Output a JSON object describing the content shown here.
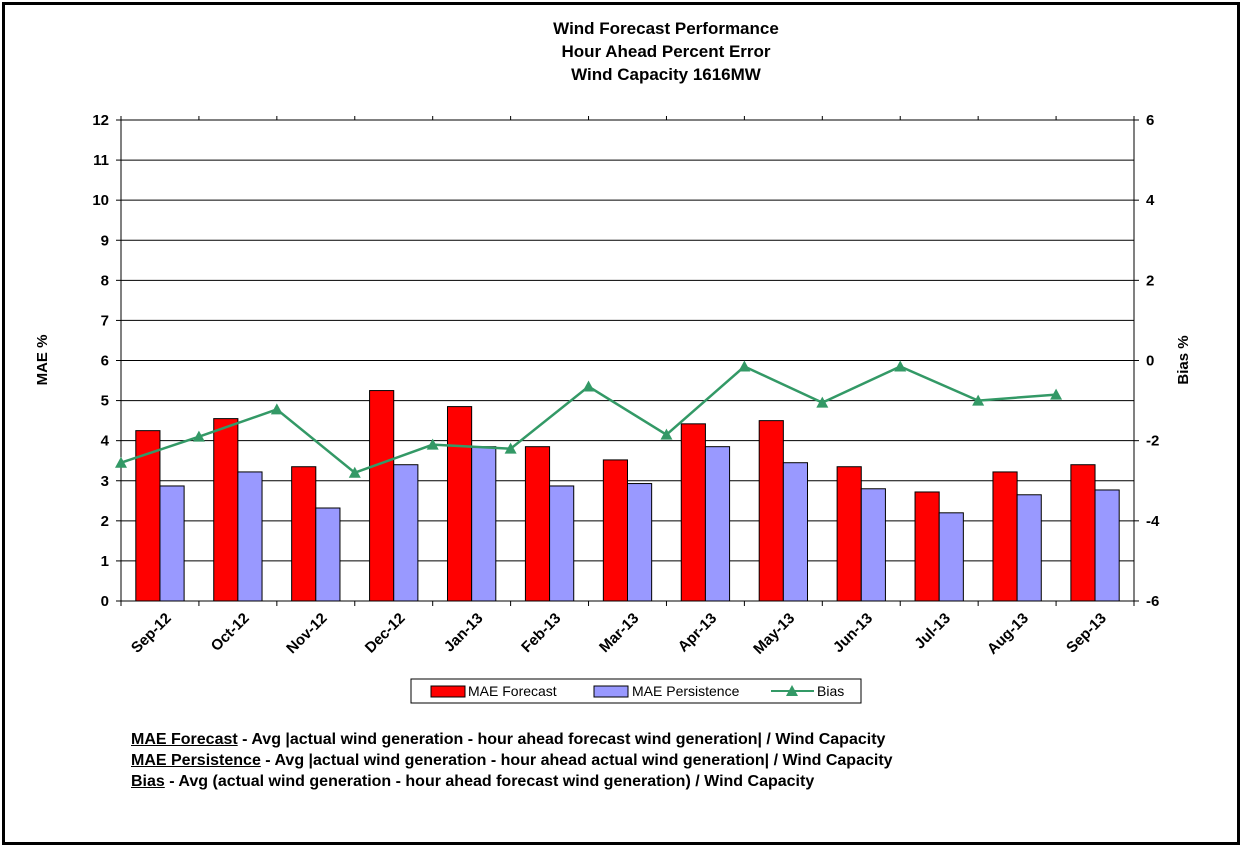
{
  "chart_data": {
    "type": "bar",
    "title_lines": [
      "Wind Forecast Performance",
      "Hour Ahead Percent Error",
      "Wind Capacity 1616MW"
    ],
    "categories": [
      "Sep-12",
      "Oct-12",
      "Nov-12",
      "Dec-12",
      "Jan-13",
      "Feb-13",
      "Mar-13",
      "Apr-13",
      "May-13",
      "Jun-13",
      "Jul-13",
      "Aug-13",
      "Sep-13"
    ],
    "series": [
      {
        "name": "MAE Forecast",
        "type": "bar",
        "axis": "left",
        "color": "#ff0000",
        "values": [
          4.25,
          4.55,
          3.35,
          5.25,
          4.85,
          3.85,
          3.52,
          4.42,
          4.5,
          3.35,
          2.72,
          3.22,
          3.4
        ]
      },
      {
        "name": "MAE Persistence",
        "type": "bar",
        "axis": "left",
        "color": "#9999ff",
        "values": [
          2.87,
          3.22,
          2.32,
          3.4,
          3.85,
          2.87,
          2.93,
          3.85,
          3.45,
          2.8,
          2.2,
          2.65,
          2.77
        ]
      },
      {
        "name": "Bias",
        "type": "line",
        "axis": "right",
        "color": "#339966",
        "marker": "triangle",
        "values": [
          -2.55,
          -1.9,
          -1.22,
          -2.8,
          -2.1,
          -2.2,
          -0.65,
          -1.85,
          -0.15,
          -1.05,
          -0.15,
          -1.0,
          -0.85
        ]
      }
    ],
    "ylabel": "MAE %",
    "y2label": "Bias %",
    "ylim": [
      0,
      12
    ],
    "y2lim": [
      -6,
      6
    ],
    "yticks": [
      "0",
      "1",
      "2",
      "3",
      "4",
      "5",
      "6",
      "7",
      "8",
      "9",
      "10",
      "11",
      "12"
    ],
    "y2ticks": [
      "-6",
      "-4",
      "-2",
      "0",
      "2",
      "4",
      "6"
    ],
    "grid": true,
    "legend_position": "bottom"
  },
  "notes": [
    {
      "term": "MAE Forecast",
      "text": " - Avg |actual wind generation - hour ahead forecast wind generation| / Wind Capacity"
    },
    {
      "term": "MAE Persistence",
      "text": " - Avg |actual wind generation - hour ahead actual wind generation| / Wind Capacity"
    },
    {
      "term": "Bias",
      "text": " - Avg (actual wind generation - hour ahead forecast wind generation) / Wind Capacity"
    }
  ]
}
